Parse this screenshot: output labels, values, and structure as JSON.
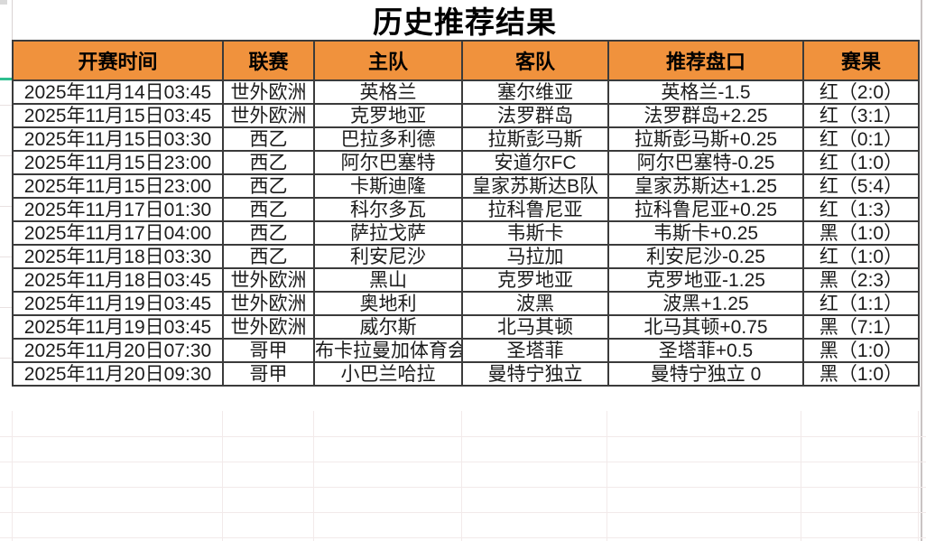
{
  "title": "历史推荐结果",
  "colors": {
    "header_bg": "#F0923D",
    "result_red": "#BD312A",
    "result_black": "#1C1C1C",
    "grid_border": "#3B3B3B",
    "freeze_marker_green": "#2EBE8F"
  },
  "table": {
    "columns": [
      "开赛时间",
      "联赛",
      "主队",
      "客队",
      "推荐盘口",
      "赛果"
    ],
    "rows": [
      {
        "time": "2025年11月14日03:45",
        "league": "世外欧洲",
        "home": "英格兰",
        "away": "塞尔维亚",
        "handicap": "英格兰-1.5",
        "result": "红（2:0）",
        "result_color": "red"
      },
      {
        "time": "2025年11月15日03:45",
        "league": "世外欧洲",
        "home": "克罗地亚",
        "away": "法罗群岛",
        "handicap": "法罗群岛+2.25",
        "result": "红（3:1）",
        "result_color": "red"
      },
      {
        "time": "2025年11月15日03:30",
        "league": "西乙",
        "home": "巴拉多利德",
        "away": "拉斯彭马斯",
        "handicap": "拉斯彭马斯+0.25",
        "result": "红（0:1）",
        "result_color": "red"
      },
      {
        "time": "2025年11月15日23:00",
        "league": "西乙",
        "home": "阿尔巴塞特",
        "away": "安道尔FC",
        "handicap": "阿尔巴塞特-0.25",
        "result": "红（1:0）",
        "result_color": "red"
      },
      {
        "time": "2025年11月15日23:00",
        "league": "西乙",
        "home": "卡斯迪隆",
        "away": "皇家苏斯达B队",
        "handicap": "皇家苏斯达+1.25",
        "result": "红（5:4）",
        "result_color": "red"
      },
      {
        "time": "2025年11月17日01:30",
        "league": "西乙",
        "home": "科尔多瓦",
        "away": "拉科鲁尼亚",
        "handicap": "拉科鲁尼亚+0.25",
        "result": "红（1:3）",
        "result_color": "red"
      },
      {
        "time": "2025年11月17日04:00",
        "league": "西乙",
        "home": "萨拉戈萨",
        "away": "韦斯卡",
        "handicap": "韦斯卡+0.25",
        "result": "黑（1:0）",
        "result_color": "black"
      },
      {
        "time": "2025年11月18日03:30",
        "league": "西乙",
        "home": "利安尼沙",
        "away": "马拉加",
        "handicap": "利安尼沙-0.25",
        "result": "红（1:0）",
        "result_color": "red"
      },
      {
        "time": "2025年11月18日03:45",
        "league": "世外欧洲",
        "home": "黑山",
        "away": "克罗地亚",
        "handicap": "克罗地亚-1.25",
        "result": "黑（2:3）",
        "result_color": "black"
      },
      {
        "time": "2025年11月19日03:45",
        "league": "世外欧洲",
        "home": "奥地利",
        "away": "波黑",
        "handicap": "波黑+1.25",
        "result": "红（1:1）",
        "result_color": "red"
      },
      {
        "time": "2025年11月19日03:45",
        "league": "世外欧洲",
        "home": "威尔斯",
        "away": "北马其顿",
        "handicap": "北马其顿+0.75",
        "result": "黑（7:1）",
        "result_color": "black"
      },
      {
        "time": "2025年11月20日07:30",
        "league": "哥甲",
        "home": "布卡拉曼加体育会",
        "away": "圣塔菲",
        "handicap": "圣塔菲+0.5",
        "result": "黑（1:0）",
        "result_color": "black"
      },
      {
        "time": "2025年11月20日09:30",
        "league": "哥甲",
        "home": "小巴兰哈拉",
        "away": "曼特宁独立",
        "handicap": "曼特宁独立 0",
        "result": "黑（1:0）",
        "result_color": "black"
      }
    ]
  }
}
